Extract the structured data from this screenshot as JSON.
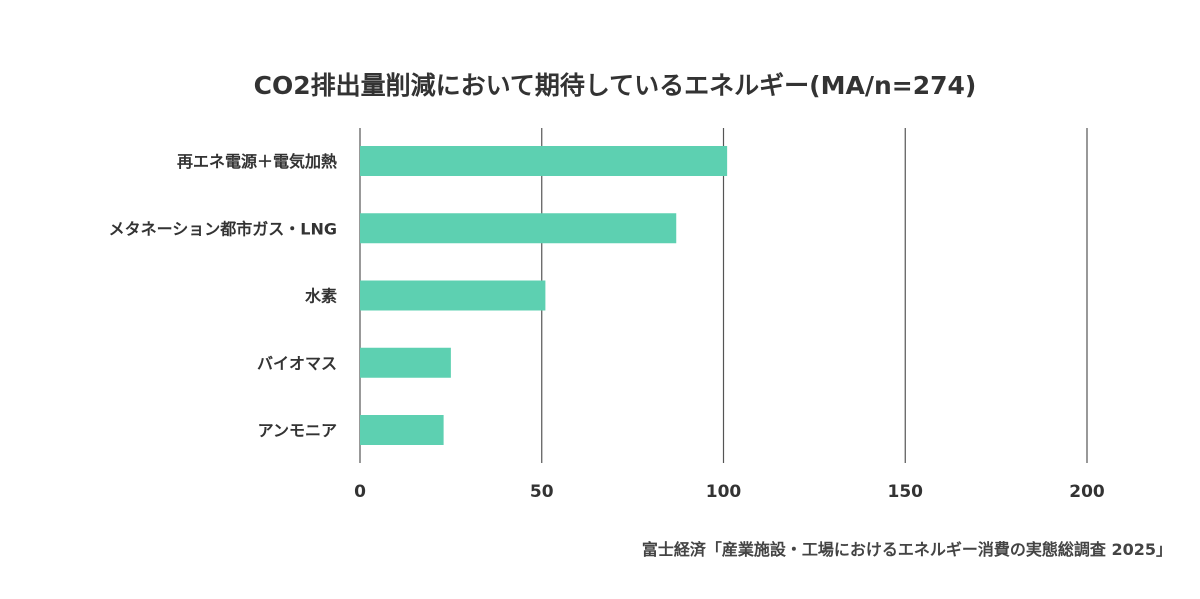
{
  "chart_data": {
    "type": "bar",
    "orientation": "horizontal",
    "title": "CO2排出量削減において期待しているエネルギー(MA/n=274)",
    "categories": [
      "再エネ電源＋電気加熱",
      "メタネーション都市ガス・LNG",
      "水素",
      "バイオマス",
      "アンモニア"
    ],
    "values": [
      101,
      87,
      51,
      25,
      23
    ],
    "xlabel": "",
    "ylabel": "",
    "xlim": [
      0,
      200
    ],
    "ticks": [
      0,
      50,
      100,
      150,
      200
    ],
    "tick_labels": [
      "0",
      "50",
      "100",
      "150",
      "200"
    ],
    "grid": true,
    "legend": "none",
    "bar_color": "#5dd0b1",
    "grid_color": "#555555"
  },
  "source": "富士経済「産業施設・工場におけるエネルギー消費の実態総調査 2025」"
}
